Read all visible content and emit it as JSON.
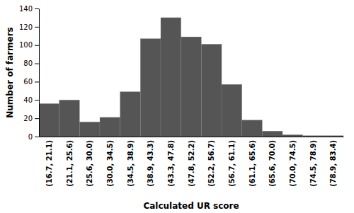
{
  "chart_data": {
    "type": "bar",
    "categories": [
      "(16.7, 21.1)",
      "(21.1, 25.6)",
      "(25.6, 30.0)",
      "(30.0, 34.5)",
      "(34.5, 38.9)",
      "(38.9, 43.3)",
      "(43.3, 47.8)",
      "(47.8, 52.2)",
      "(52.2, 56.7)",
      "(56.7, 61.1)",
      "(61.1, 65.6)",
      "(65.6, 70.0)",
      "(70.0, 74.5)",
      "(74.5, 78.9)",
      "(78.9, 83.4)"
    ],
    "values": [
      36,
      40,
      16,
      21,
      49,
      107,
      130,
      109,
      101,
      57,
      18,
      6,
      2,
      1,
      1
    ],
    "color": "#555555",
    "xlabel": "Calculated UR score",
    "ylabel": "Number of farmers",
    "ylim": [
      0,
      140
    ],
    "yticks": [
      0,
      20,
      40,
      60,
      80,
      100,
      120,
      140
    ],
    "grid": false
  }
}
